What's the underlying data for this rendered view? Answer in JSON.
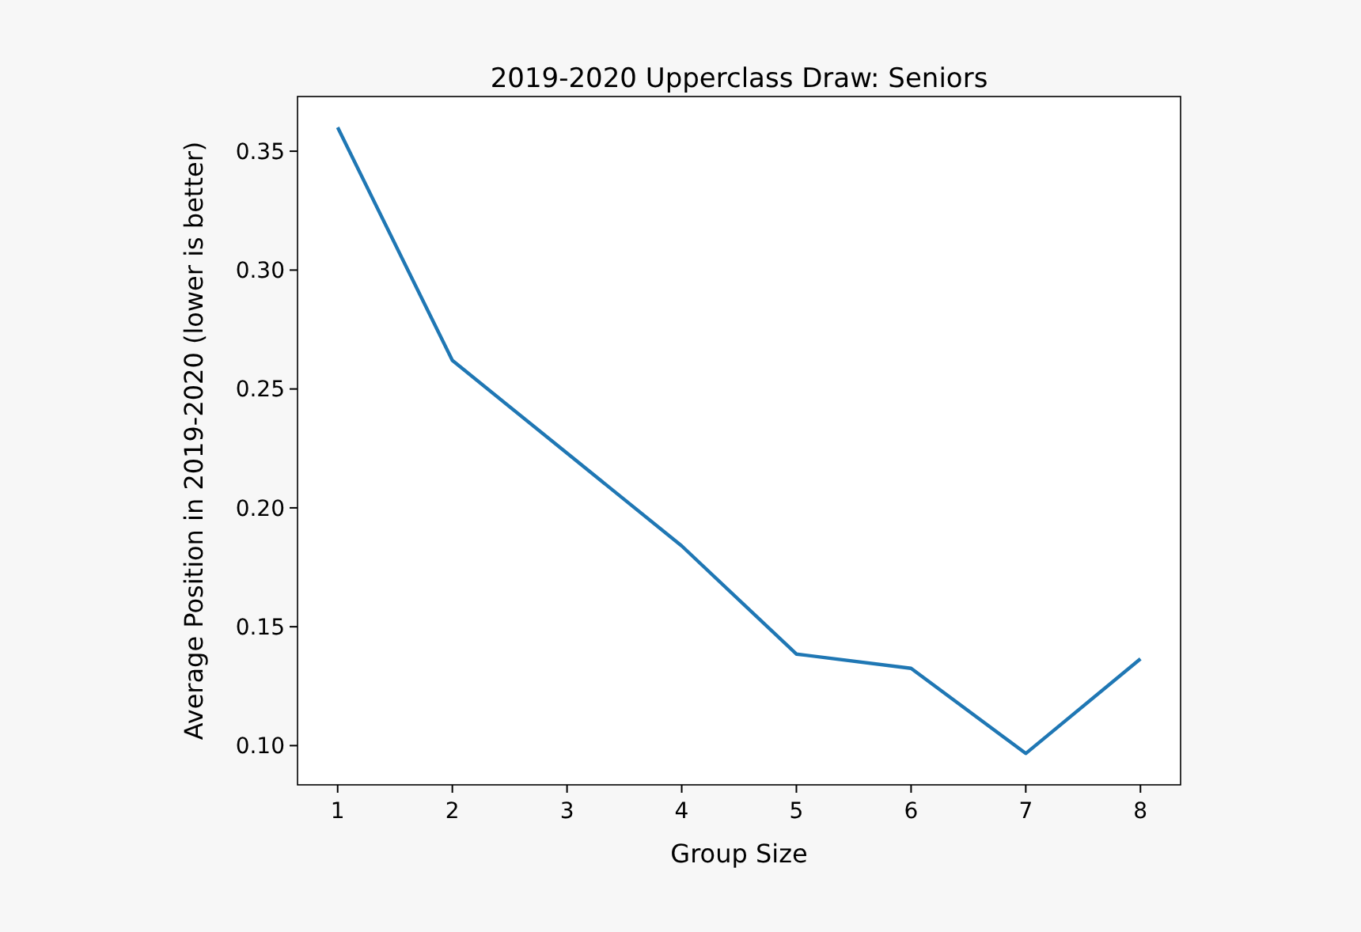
{
  "chart_data": {
    "type": "line",
    "title": "2019-2020 Upperclass Draw: Seniors",
    "xlabel": "Group Size",
    "ylabel": "Average Position in 2019-2020 (lower is better)",
    "x": [
      1,
      2,
      3,
      4,
      5,
      6,
      7,
      8
    ],
    "series": [
      {
        "color": "#1f77b4",
        "values": [
          0.36,
          0.262,
          0.223,
          0.184,
          0.1385,
          0.1325,
          0.0967,
          0.1365
        ]
      }
    ],
    "xlim": [
      0.65,
      8.35
    ],
    "xticks": [
      1,
      2,
      3,
      4,
      5,
      6,
      7,
      8
    ],
    "ylim": [
      0.0835,
      0.373
    ],
    "yticks": [
      {
        "value": 0.1,
        "label": "0.10"
      },
      {
        "value": 0.15,
        "label": "0.15"
      },
      {
        "value": 0.2,
        "label": "0.20"
      },
      {
        "value": 0.25,
        "label": "0.25"
      },
      {
        "value": 0.3,
        "label": "0.30"
      },
      {
        "value": 0.35,
        "label": "0.35"
      }
    ],
    "grid": false
  }
}
